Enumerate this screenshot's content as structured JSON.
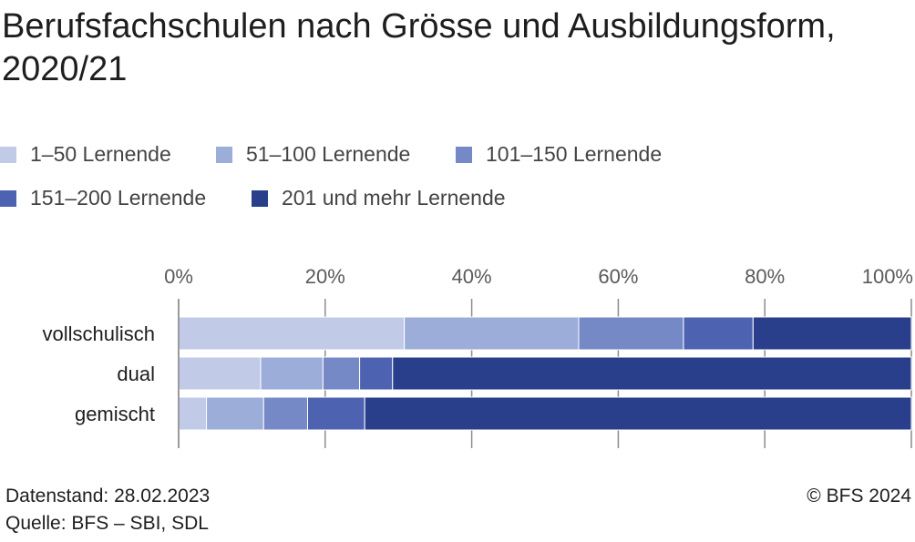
{
  "title": "Berufsfachschulen nach Grösse und Ausbildungsform, 2020/21",
  "footer": {
    "datenstand": "Datenstand: 28.02.2023",
    "quelle": "Quelle: BFS – SBI, SDL",
    "copyright": "© BFS 2024"
  },
  "chart_data": {
    "type": "bar",
    "orientation": "horizontal",
    "stacked": true,
    "categories": [
      "vollschulisch",
      "dual",
      "gemischt"
    ],
    "series": [
      {
        "name": "1–50 Lernende",
        "color": "#c1cbe8",
        "values": [
          30.8,
          11.2,
          3.8
        ]
      },
      {
        "name": "51–100 Lernende",
        "color": "#9dadda",
        "values": [
          23.8,
          8.5,
          7.8
        ]
      },
      {
        "name": "101–150 Lernende",
        "color": "#7689c7",
        "values": [
          14.3,
          5.0,
          6.0
        ]
      },
      {
        "name": "151–200 Lernende",
        "color": "#4e62b2",
        "values": [
          9.5,
          4.5,
          7.8
        ]
      },
      {
        "name": "201 und mehr Lernende",
        "color": "#293f8c",
        "values": [
          21.6,
          70.8,
          74.6
        ]
      }
    ],
    "xlim": [
      0,
      100
    ],
    "xticks": [
      0,
      20,
      40,
      60,
      80,
      100
    ],
    "xtick_labels": [
      "0%",
      "20%",
      "40%",
      "60%",
      "80%",
      "100%"
    ],
    "grid": true,
    "legend_position": "top"
  }
}
